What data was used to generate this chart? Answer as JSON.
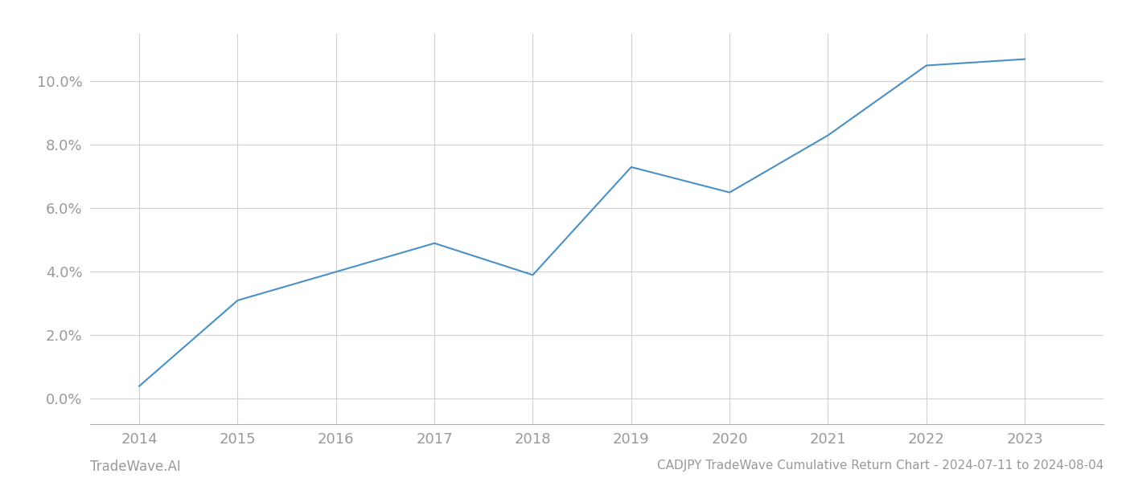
{
  "x_years": [
    2014,
    2015,
    2016,
    2017,
    2018,
    2019,
    2020,
    2021,
    2022,
    2023
  ],
  "y_values": [
    0.004,
    0.031,
    0.04,
    0.049,
    0.039,
    0.073,
    0.065,
    0.083,
    0.105,
    0.107
  ],
  "line_color": "#4a90c4",
  "line_width": 1.5,
  "title": "CADJPY TradeWave Cumulative Return Chart - 2024-07-11 to 2024-08-04",
  "watermark": "TradeWave.AI",
  "background_color": "#ffffff",
  "grid_color": "#d0d0d0",
  "tick_color": "#999999",
  "xlim": [
    2013.5,
    2023.8
  ],
  "ylim": [
    -0.008,
    0.115
  ],
  "yticks": [
    0.0,
    0.02,
    0.04,
    0.06,
    0.08,
    0.1
  ],
  "xticks": [
    2014,
    2015,
    2016,
    2017,
    2018,
    2019,
    2020,
    2021,
    2022,
    2023
  ],
  "title_fontsize": 11,
  "tick_fontsize": 13,
  "watermark_fontsize": 12
}
